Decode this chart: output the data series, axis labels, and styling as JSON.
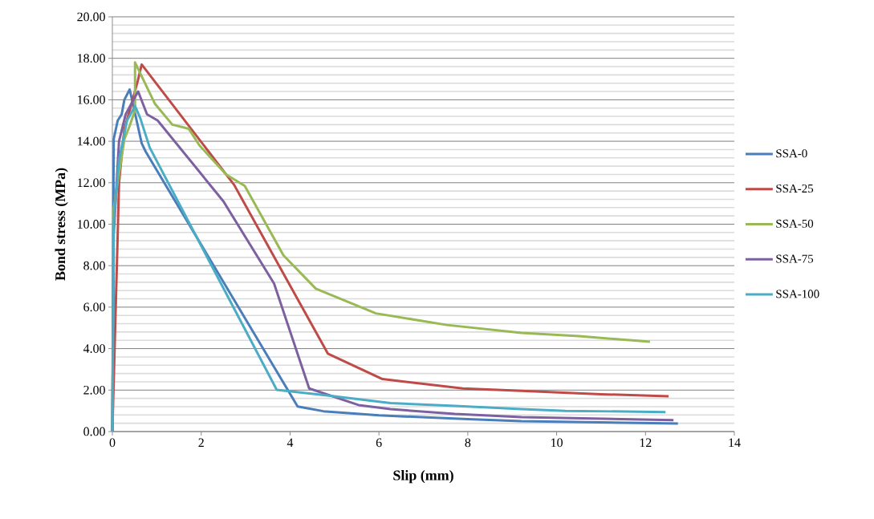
{
  "chart_data": {
    "type": "line",
    "xlabel": "Slip (mm)",
    "ylabel": "Bond stress (MPa)",
    "xlim": [
      0,
      14
    ],
    "xticks": [
      0,
      2,
      4,
      6,
      8,
      10,
      12,
      14
    ],
    "ylim": [
      0,
      20
    ],
    "yticks": [
      {
        "value": 0,
        "label": "0.00"
      },
      {
        "value": 2,
        "label": "2.00"
      },
      {
        "value": 4,
        "label": "4.00"
      },
      {
        "value": 6,
        "label": "6.00"
      },
      {
        "value": 8,
        "label": "8.00"
      },
      {
        "value": 10,
        "label": "10.00"
      },
      {
        "value": 12,
        "label": "12.00"
      },
      {
        "value": 14,
        "label": "14.00"
      },
      {
        "value": 16,
        "label": "16.00"
      },
      {
        "value": 18,
        "label": "18.00"
      },
      {
        "value": 20,
        "label": "20.00"
      }
    ],
    "grid": "y",
    "legend": "right",
    "marker": "none",
    "line_style": "solid",
    "series": [
      {
        "name": "SSA-0",
        "color": "#4a7ebb",
        "x": [
          0,
          0.03,
          0.12,
          0.21,
          0.27,
          0.39,
          0.66,
          0.75,
          4.17,
          4.75,
          6.0,
          8.0,
          9.2,
          12.73
        ],
        "values": [
          0,
          14.1,
          15.0,
          15.3,
          16.0,
          16.5,
          13.9,
          13.5,
          1.21,
          0.98,
          0.78,
          0.6,
          0.5,
          0.39
        ]
      },
      {
        "name": "SSA-25",
        "color": "#be4b48",
        "x": [
          0,
          0.12,
          0.15,
          0.27,
          0.42,
          0.57,
          0.66,
          2.74,
          4.85,
          6.08,
          7.89,
          9.21,
          11.0,
          12.52
        ],
        "values": [
          0,
          9.5,
          12.0,
          14.6,
          15.7,
          16.9,
          17.7,
          11.9,
          3.76,
          2.53,
          2.08,
          1.96,
          1.8,
          1.7
        ]
      },
      {
        "name": "SSA-50",
        "color": "#98b954",
        "x": [
          0,
          0.03,
          0.27,
          0.39,
          0.51,
          0.51,
          0.96,
          1.35,
          1.72,
          1.96,
          2.56,
          2.98,
          3.85,
          4.58,
          5.93,
          7.53,
          9.21,
          10.5,
          12.1
        ],
        "values": [
          0,
          10.75,
          14.1,
          14.75,
          15.5,
          17.8,
          15.8,
          14.8,
          14.6,
          13.8,
          12.4,
          11.85,
          8.5,
          6.89,
          5.7,
          5.14,
          4.76,
          4.6,
          4.33
        ]
      },
      {
        "name": "SSA-75",
        "color": "#7d60a0",
        "x": [
          0,
          0.03,
          0.15,
          0.3,
          0.45,
          0.58,
          0.78,
          1.02,
          2.5,
          3.64,
          4.43,
          5.54,
          6.26,
          7.71,
          9.21,
          12.63
        ],
        "values": [
          0,
          9.5,
          14.0,
          15.3,
          15.9,
          16.4,
          15.3,
          15.0,
          11.1,
          7.14,
          2.08,
          1.28,
          1.08,
          0.85,
          0.7,
          0.55
        ]
      },
      {
        "name": "SSA-100",
        "color": "#4bacc6",
        "x": [
          0,
          0.03,
          0.15,
          0.33,
          0.51,
          0.63,
          0.84,
          3.7,
          4.88,
          6.26,
          7.71,
          9.21,
          10.2,
          12.45
        ],
        "values": [
          0,
          10.1,
          13.1,
          15.0,
          15.7,
          15.1,
          13.7,
          2.01,
          1.73,
          1.37,
          1.24,
          1.08,
          1.0,
          0.94
        ]
      }
    ]
  }
}
